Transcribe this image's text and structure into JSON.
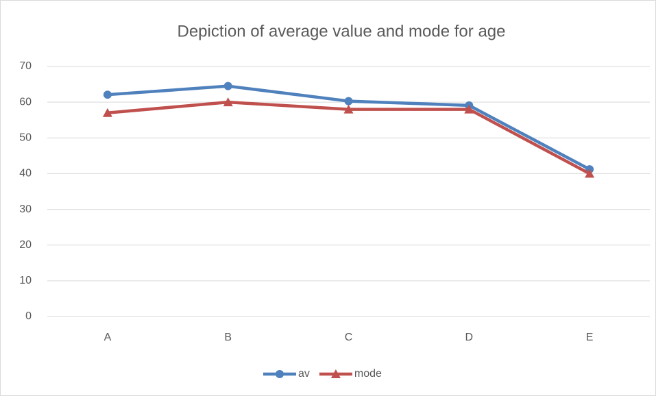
{
  "chart_data": {
    "type": "line",
    "title": "Depiction of average value and mode for age",
    "categories": [
      "A",
      "B",
      "C",
      "D",
      "E"
    ],
    "series": [
      {
        "name": "av",
        "color": "#4f81bd",
        "marker": "circle",
        "values": [
          62.1,
          64.5,
          60.3,
          59.1,
          41.2
        ]
      },
      {
        "name": "mode",
        "color": "#c0504d",
        "marker": "triangle",
        "values": [
          57,
          60,
          58,
          58,
          40
        ]
      }
    ],
    "ylim": [
      0,
      70
    ],
    "yticks": [
      0,
      10,
      20,
      30,
      40,
      50,
      60,
      70
    ],
    "grid": true,
    "legend": "bottom"
  }
}
